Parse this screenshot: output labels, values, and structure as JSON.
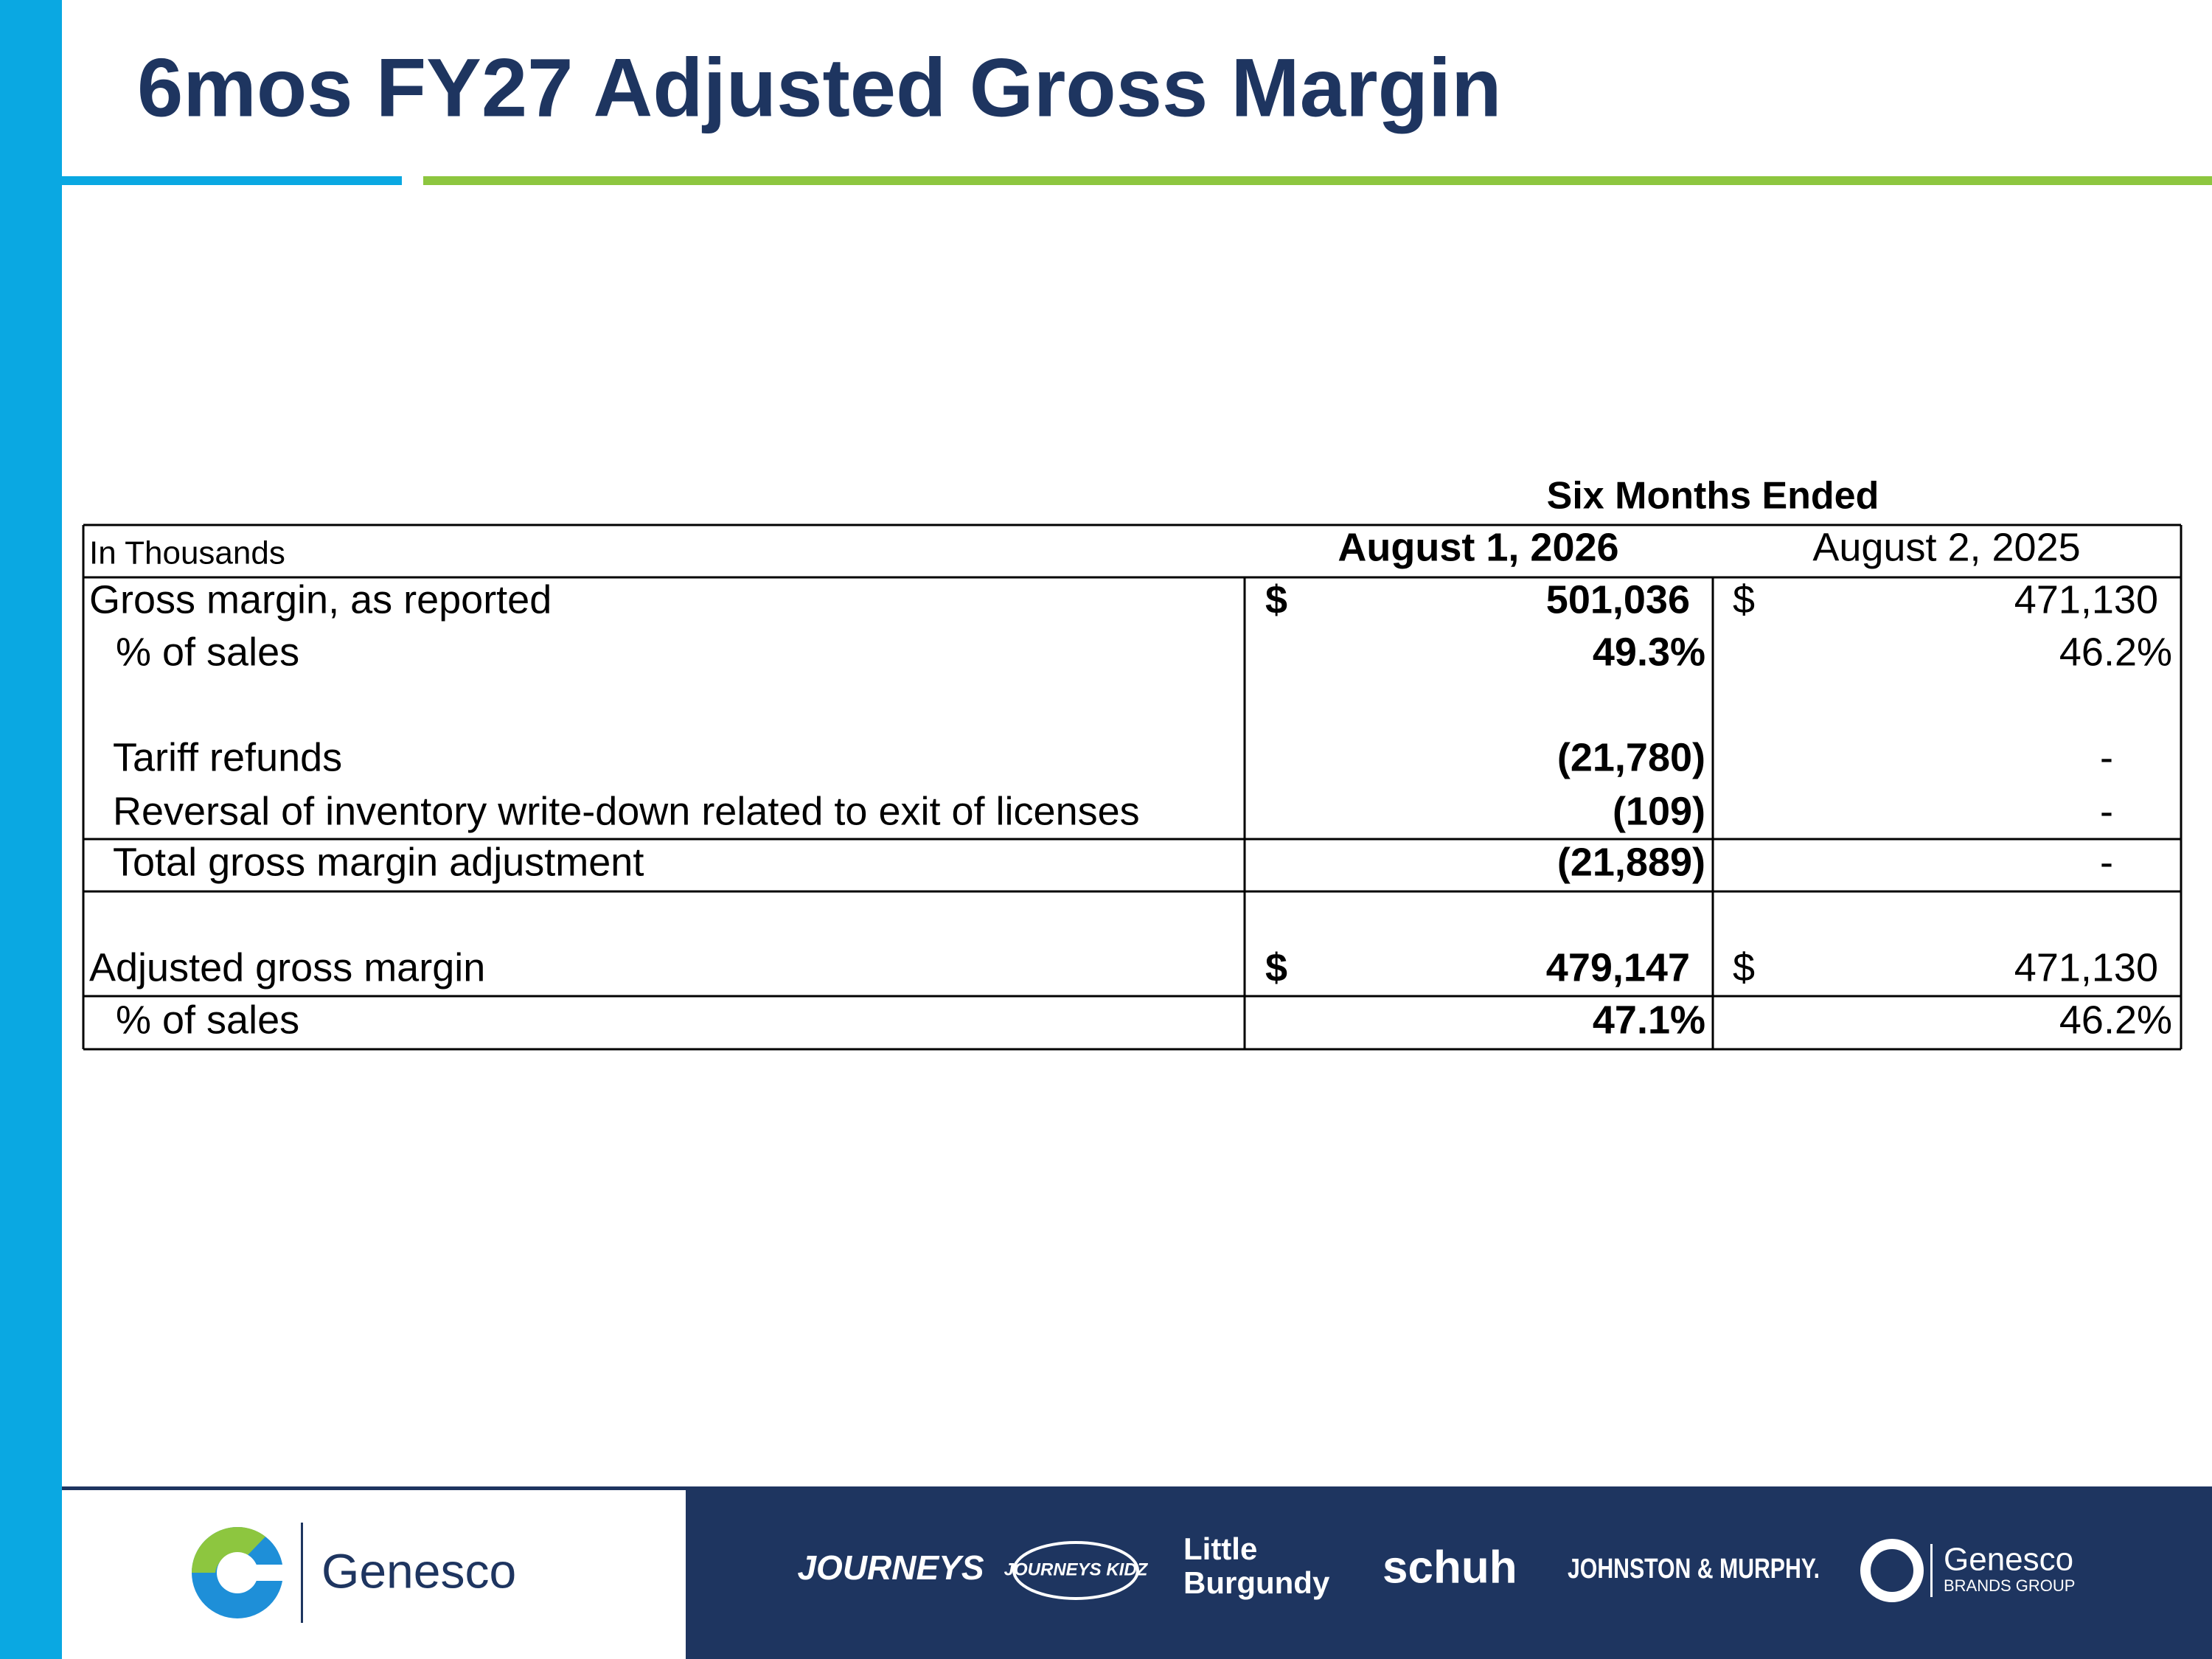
{
  "title": "6mos FY27 Adjusted Gross Margin",
  "table": {
    "caption": "Six Months Ended",
    "unit_label": "In Thousands",
    "columns": [
      "August 1, 2026",
      "August 2, 2025"
    ],
    "rows": [
      {
        "label": "Gross margin, as reported",
        "cells": [
          {
            "currency": "$",
            "value": "501,036"
          },
          {
            "currency": "$",
            "value": "471,130"
          }
        ]
      },
      {
        "label": "% of sales",
        "cells": [
          {
            "value": "49.3%"
          },
          {
            "value": "46.2%"
          }
        ]
      },
      {
        "label": "Tariff refunds",
        "cells": [
          {
            "value": "(21,780)"
          },
          {
            "value": "-"
          }
        ]
      },
      {
        "label": "Reversal of inventory write-down related to exit of licenses",
        "cells": [
          {
            "value": "(109)"
          },
          {
            "value": "-"
          }
        ]
      },
      {
        "label": "Total gross margin adjustment",
        "cells": [
          {
            "value": "(21,889)"
          },
          {
            "value": "-"
          }
        ]
      },
      {
        "label": "Adjusted gross margin",
        "cells": [
          {
            "currency": "$",
            "value": "479,147"
          },
          {
            "currency": "$",
            "value": "471,130"
          }
        ]
      },
      {
        "label": "% of sales",
        "cells": [
          {
            "value": "47.1%"
          },
          {
            "value": "46.2%"
          }
        ]
      }
    ]
  },
  "footer": {
    "logo": "Genesco",
    "brands": [
      "JOURNEYS",
      "JOURNEYS KIDZ",
      "Little",
      "Burgundy",
      "schuh",
      "JOHNSTON & MURPHY.",
      "Genesco",
      "BRANDS GROUP"
    ]
  }
}
